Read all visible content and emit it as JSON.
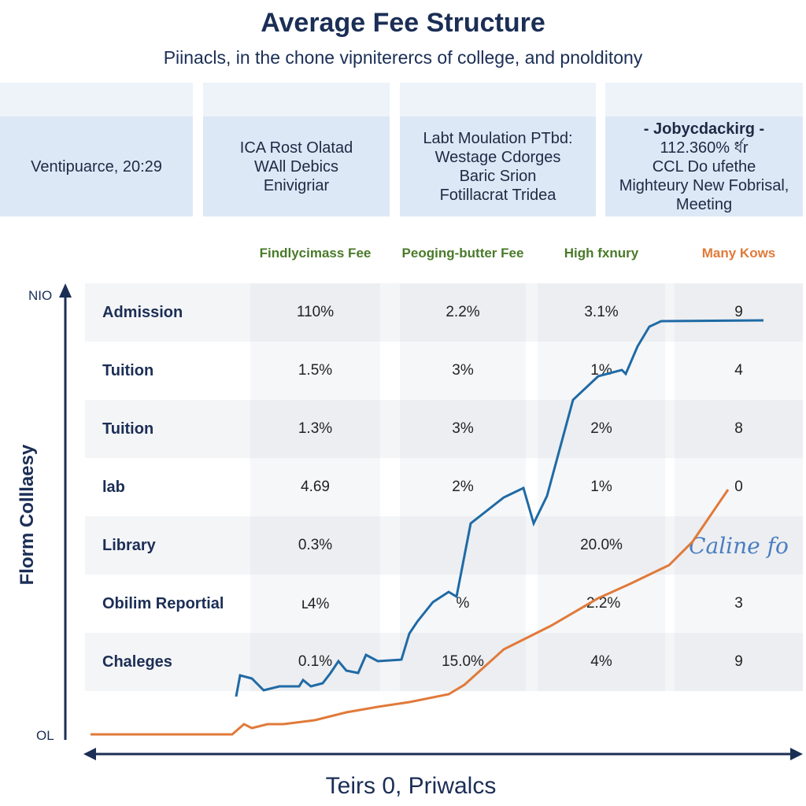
{
  "header": {
    "title": "Average Fee Structure",
    "subtitle": "Piinacls, in the chone vipniterercs of college, and pnolditony"
  },
  "cards": [
    {
      "lines": [
        "Ventipuarce, 20:29"
      ]
    },
    {
      "lines": [
        "ICA Rost Olatad",
        "WAll Debics",
        "Enivigriar"
      ]
    },
    {
      "lines": [
        "Labt Moulation PTbd:",
        "Westage Cdorges",
        "Baric Srion",
        "Fotillacrat Tridea"
      ]
    },
    {
      "lines": [
        "- Jobycdackirg -",
        "112.360% র্ধr",
        "CCL Do ufethe",
        "Mighteury New Fobrisal,",
        "Meeting"
      ]
    }
  ],
  "table": {
    "columns": [
      "Findlycimass Fee",
      "Peoging-butter Fee",
      "High fxnury",
      "Many Kows"
    ],
    "rows": [
      [
        "Admission",
        "110%",
        "2.2%",
        "3.1%",
        "9"
      ],
      [
        "Tuition",
        "1.5%",
        "3%",
        "1%",
        "4"
      ],
      [
        "Tuition",
        "1.3%",
        "3%",
        "2%",
        "8"
      ],
      [
        "lab",
        "4.69",
        "2%",
        "1%",
        "0"
      ],
      [
        "Library",
        "0.3%",
        null,
        "20.0%",
        "Caline fo"
      ],
      [
        "Obilim Reportial",
        "ւ4%",
        "%",
        ".2.2%",
        "3"
      ],
      [
        "Chaleges",
        "0.1%",
        "15.0%",
        "4%",
        "9"
      ]
    ]
  },
  "axis": {
    "y_label": "Florm Colllaesy",
    "y_top": "NIO",
    "y_bottom": "OL",
    "x_label": "Teirs 0, Priwalcs"
  }
}
